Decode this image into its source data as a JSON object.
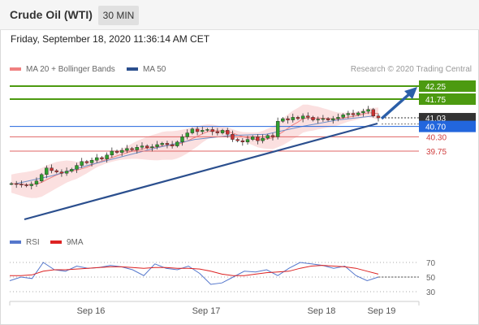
{
  "header": {
    "title": "Crude Oil (WTI)",
    "timeframe": "30 MIN"
  },
  "datetime": "Friday, September 18, 2020 11:36:14 AM CET",
  "legend": {
    "ma_bb": {
      "label": "MA 20 + Bollinger Bands",
      "color": "#f08080"
    },
    "ma50": {
      "label": "MA 50",
      "color": "#2b4f8e"
    },
    "credit": "Research © 2020 Trading Central"
  },
  "rsi_legend": {
    "rsi": {
      "label": "RSI",
      "color": "#5577cc"
    },
    "ma9": {
      "label": "9MA",
      "color": "#dd2222"
    }
  },
  "chart_data": {
    "type": "candlestick",
    "title": "Crude Oil (WTI)",
    "timeframe": "30 MIN",
    "x_labels": [
      "Sep 16",
      "Sep 17",
      "Sep 18",
      "Sep 19"
    ],
    "ylim": [
      38.35,
      42.55
    ],
    "levels": [
      {
        "value": 42.25,
        "label": "42.25",
        "type": "resistance",
        "color": "#4c9a10"
      },
      {
        "value": 41.75,
        "label": "41.75",
        "type": "resistance",
        "color": "#4c9a10"
      },
      {
        "value": 41.03,
        "label": "41.03",
        "type": "last price",
        "color": "#333333"
      },
      {
        "value": 40.7,
        "label": "40.70",
        "type": "pivot",
        "color": "#2266dd"
      },
      {
        "value": 40.3,
        "label": "40.30",
        "type": "support",
        "color": "#e06666"
      },
      {
        "value": 39.75,
        "label": "39.75",
        "type": "support",
        "color": "#e06666"
      }
    ],
    "price_series": [
      38.5,
      38.48,
      38.45,
      38.42,
      38.48,
      38.6,
      38.85,
      39.1,
      39.0,
      38.95,
      38.9,
      38.98,
      39.05,
      39.2,
      39.35,
      39.3,
      39.4,
      39.5,
      39.45,
      39.6,
      39.75,
      39.7,
      39.78,
      39.85,
      39.8,
      39.9,
      39.95,
      39.88,
      39.92,
      40.0,
      40.05,
      40.0,
      39.95,
      40.1,
      40.3,
      40.45,
      40.6,
      40.5,
      40.55,
      40.58,
      40.5,
      40.45,
      40.55,
      40.4,
      40.2,
      40.15,
      40.1,
      40.2,
      40.3,
      40.15,
      40.25,
      40.35,
      40.3,
      40.9,
      41.0,
      40.95,
      41.05,
      41.0,
      41.1,
      41.05,
      40.95,
      40.98,
      41.0,
      40.95,
      41.0,
      41.05,
      41.15,
      41.2,
      41.15,
      41.22,
      41.28,
      41.35,
      41.1,
      41.03
    ],
    "indicators": {
      "ma50": [
        38.5,
        38.8,
        39.2,
        39.55,
        39.9,
        40.2,
        40.35,
        40.4,
        40.7,
        40.95,
        41.1
      ],
      "rsi_levels": [
        70,
        50,
        30
      ],
      "rsi": [
        45,
        50,
        48,
        70,
        60,
        58,
        65,
        62,
        63,
        66,
        64,
        60,
        52,
        68,
        62,
        60,
        65,
        55,
        40,
        42,
        50,
        58,
        57,
        60,
        52,
        62,
        70,
        68,
        66,
        62,
        65,
        52,
        45,
        50
      ],
      "rsi_9ma": [
        52,
        52,
        53,
        58,
        60,
        60,
        61,
        62,
        63,
        64,
        64,
        63,
        62,
        63,
        63,
        62,
        62,
        61,
        58,
        54,
        52,
        52,
        54,
        56,
        57,
        58,
        62,
        65,
        66,
        65,
        64,
        62,
        58,
        54
      ]
    }
  }
}
